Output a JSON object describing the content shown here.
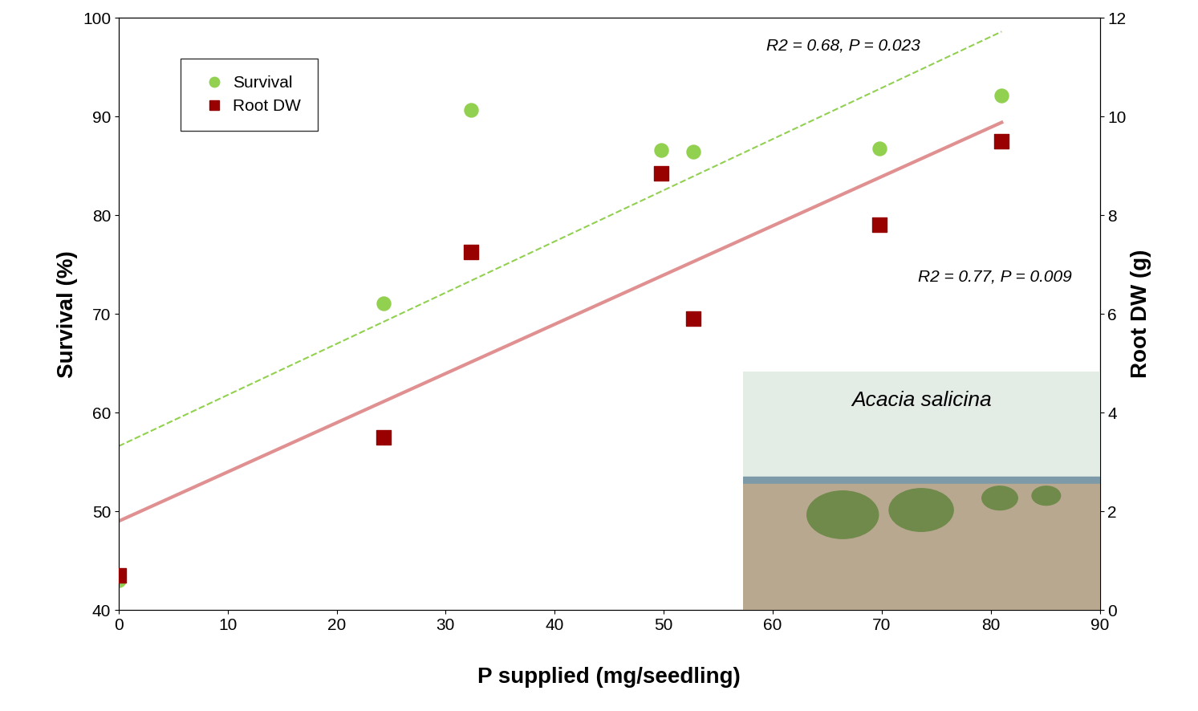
{
  "chart_data": {
    "type": "scatter",
    "x_label": "P supplied (mg/seedling)",
    "y_label": "Survival (%)",
    "y2_label": "Root DW (g)",
    "xlim": [
      0,
      90
    ],
    "xticks": [
      0,
      10,
      20,
      30,
      40,
      50,
      60,
      70,
      80,
      90
    ],
    "ylim": [
      40,
      100
    ],
    "yticks": [
      40,
      50,
      60,
      70,
      80,
      90,
      100
    ],
    "y2lim": [
      0,
      12
    ],
    "y2ticks": [
      0,
      2,
      4,
      6,
      8,
      10,
      12
    ],
    "grid": false,
    "legend": "upper left",
    "series": [
      {
        "name": "Survival",
        "color": "#92d050",
        "marker": "circle",
        "x": [
          0,
          24.3,
          32.3,
          49.8,
          52.7,
          69.8,
          81.0
        ],
        "values": [
          43.0,
          71.1,
          90.7,
          86.6,
          86.4,
          86.8,
          92.1
        ],
        "trend": {
          "x": [
            0,
            81.0
          ],
          "values": [
            56.6,
            98.6
          ],
          "color": "#92d050",
          "line_style": "dashed"
        }
      },
      {
        "name": "Root DW",
        "color": "#990000",
        "marker": "square",
        "axis": "y2",
        "x": [
          0,
          24.3,
          32.3,
          49.8,
          52.7,
          69.8,
          81.0
        ],
        "values": [
          0.7,
          3.5,
          7.25,
          8.85,
          5.9,
          7.8,
          9.5
        ],
        "trend": {
          "x": [
            0,
            81.0
          ],
          "values": [
            1.8,
            9.88
          ],
          "color": "#e09090",
          "line_style": "solid"
        }
      }
    ],
    "annotations": [
      "R2 = 0.68, P = 0.023",
      "R2 = 0.77, P = 0.009"
    ],
    "inset_caption": "Acacia salicina"
  }
}
